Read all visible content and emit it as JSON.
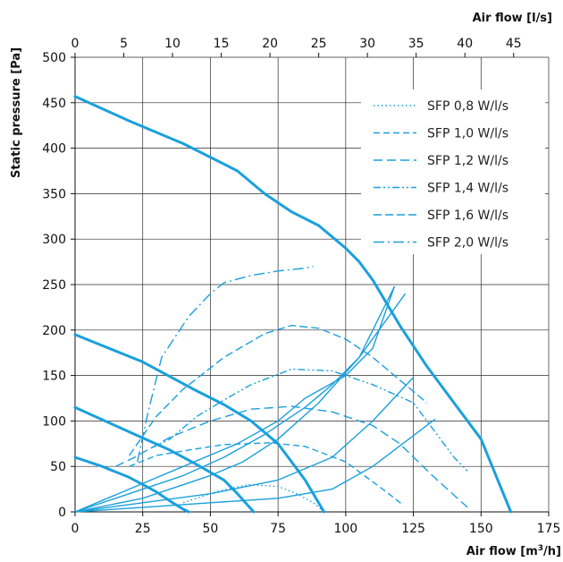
{
  "chart_data": {
    "type": "line",
    "title": "",
    "xlabel": "Air flow [m",
    "xlabel_sup": "3",
    "xlabel_end": "/h]",
    "x2label": "Air flow [l/s]",
    "ylabel": "Static pressure [Pa]",
    "xlim": [
      0,
      175
    ],
    "ylim": [
      0,
      500
    ],
    "x2lim": [
      0,
      48.6
    ],
    "x_ticks": [
      0,
      25,
      50,
      75,
      100,
      125,
      150,
      175
    ],
    "x2_ticks": [
      0,
      5,
      10,
      15,
      20,
      25,
      30,
      35,
      40,
      45
    ],
    "y_ticks": [
      0,
      50,
      100,
      150,
      200,
      250,
      300,
      350,
      400,
      450,
      500
    ],
    "grid": true,
    "legend_position": "top-right",
    "color": "#1aa0dc",
    "fan_curves": [
      {
        "x": [
          0,
          20,
          40,
          60,
          70,
          80,
          90,
          100,
          105,
          110,
          120,
          130,
          140,
          150,
          161
        ],
        "y": [
          457,
          430,
          405,
          375,
          350,
          330,
          315,
          290,
          275,
          255,
          205,
          160,
          120,
          80,
          0
        ]
      },
      {
        "x": [
          0,
          25,
          45,
          55,
          65,
          75,
          85,
          92
        ],
        "y": [
          195,
          165,
          133,
          118,
          100,
          75,
          35,
          0
        ]
      },
      {
        "x": [
          0,
          20,
          35,
          45,
          55,
          60,
          66
        ],
        "y": [
          115,
          88,
          68,
          52,
          35,
          20,
          0
        ]
      },
      {
        "x": [
          0,
          10,
          20,
          30,
          35,
          40,
          42
        ],
        "y": [
          60,
          50,
          38,
          22,
          12,
          3,
          0
        ]
      }
    ],
    "system_curves": [
      {
        "x": [
          0,
          25,
          50,
          75,
          95,
          110,
          133
        ],
        "y": [
          0,
          5,
          10,
          15,
          25,
          50,
          102
        ]
      },
      {
        "x": [
          0,
          25,
          50,
          75,
          95,
          110,
          125
        ],
        "y": [
          0,
          10,
          20,
          35,
          60,
          100,
          148
        ]
      },
      {
        "x": [
          0,
          25,
          50,
          62,
          75,
          90,
          105,
          122
        ],
        "y": [
          0,
          15,
          40,
          55,
          80,
          120,
          170,
          240
        ]
      },
      {
        "x": [
          0,
          20,
          40,
          55,
          70,
          85,
          95,
          105,
          118
        ],
        "y": [
          0,
          20,
          40,
          60,
          85,
          115,
          140,
          170,
          248
        ]
      },
      {
        "x": [
          0,
          20,
          40,
          60,
          75,
          85,
          100,
          110,
          118
        ],
        "y": [
          0,
          25,
          50,
          75,
          100,
          125,
          150,
          180,
          248
        ]
      }
    ],
    "series": [
      {
        "name": "SFP 0,8 W/l/s",
        "dash": "1.5 3",
        "x": [
          40,
          52,
          64,
          75,
          82,
          88,
          92
        ],
        "y": [
          10,
          22,
          30,
          28,
          20,
          10,
          0
        ]
      },
      {
        "name": "SFP 1,0 W/l/s",
        "dash": "7 4",
        "x": [
          20,
          30,
          42,
          55,
          72,
          85,
          100,
          115,
          121
        ],
        "y": [
          50,
          62,
          68,
          74,
          76,
          72,
          55,
          22,
          8
        ]
      },
      {
        "name": "SFP 1,2 W/l/s",
        "dash": "10 5",
        "x": [
          15,
          22,
          35,
          50,
          65,
          80,
          95,
          110,
          120,
          132,
          145
        ],
        "y": [
          50,
          60,
          82,
          100,
          113,
          116,
          110,
          95,
          75,
          40,
          5
        ]
      },
      {
        "name": "SFP 1,4 W/l/s",
        "dash": "8 3 2 3 2 3",
        "x": [
          28,
          35,
          45,
          55,
          65,
          80,
          95,
          110,
          125,
          140,
          145
        ],
        "y": [
          70,
          80,
          105,
          123,
          140,
          157,
          155,
          140,
          120,
          60,
          45
        ]
      },
      {
        "name": "SFP 1,6 W/l/s",
        "dash": "9 4",
        "x": [
          20,
          30,
          40,
          55,
          70,
          80,
          90,
          100,
          110,
          120,
          130
        ],
        "y": [
          62,
          105,
          135,
          170,
          196,
          205,
          202,
          190,
          170,
          145,
          120
        ]
      },
      {
        "name": "SFP 2,0 W/l/s",
        "dash": "12 4 2 4",
        "x": [
          23,
          27,
          32,
          42,
          50,
          55,
          65,
          75,
          85,
          88
        ],
        "y": [
          55,
          110,
          170,
          215,
          240,
          252,
          260,
          265,
          268,
          270
        ]
      }
    ]
  }
}
